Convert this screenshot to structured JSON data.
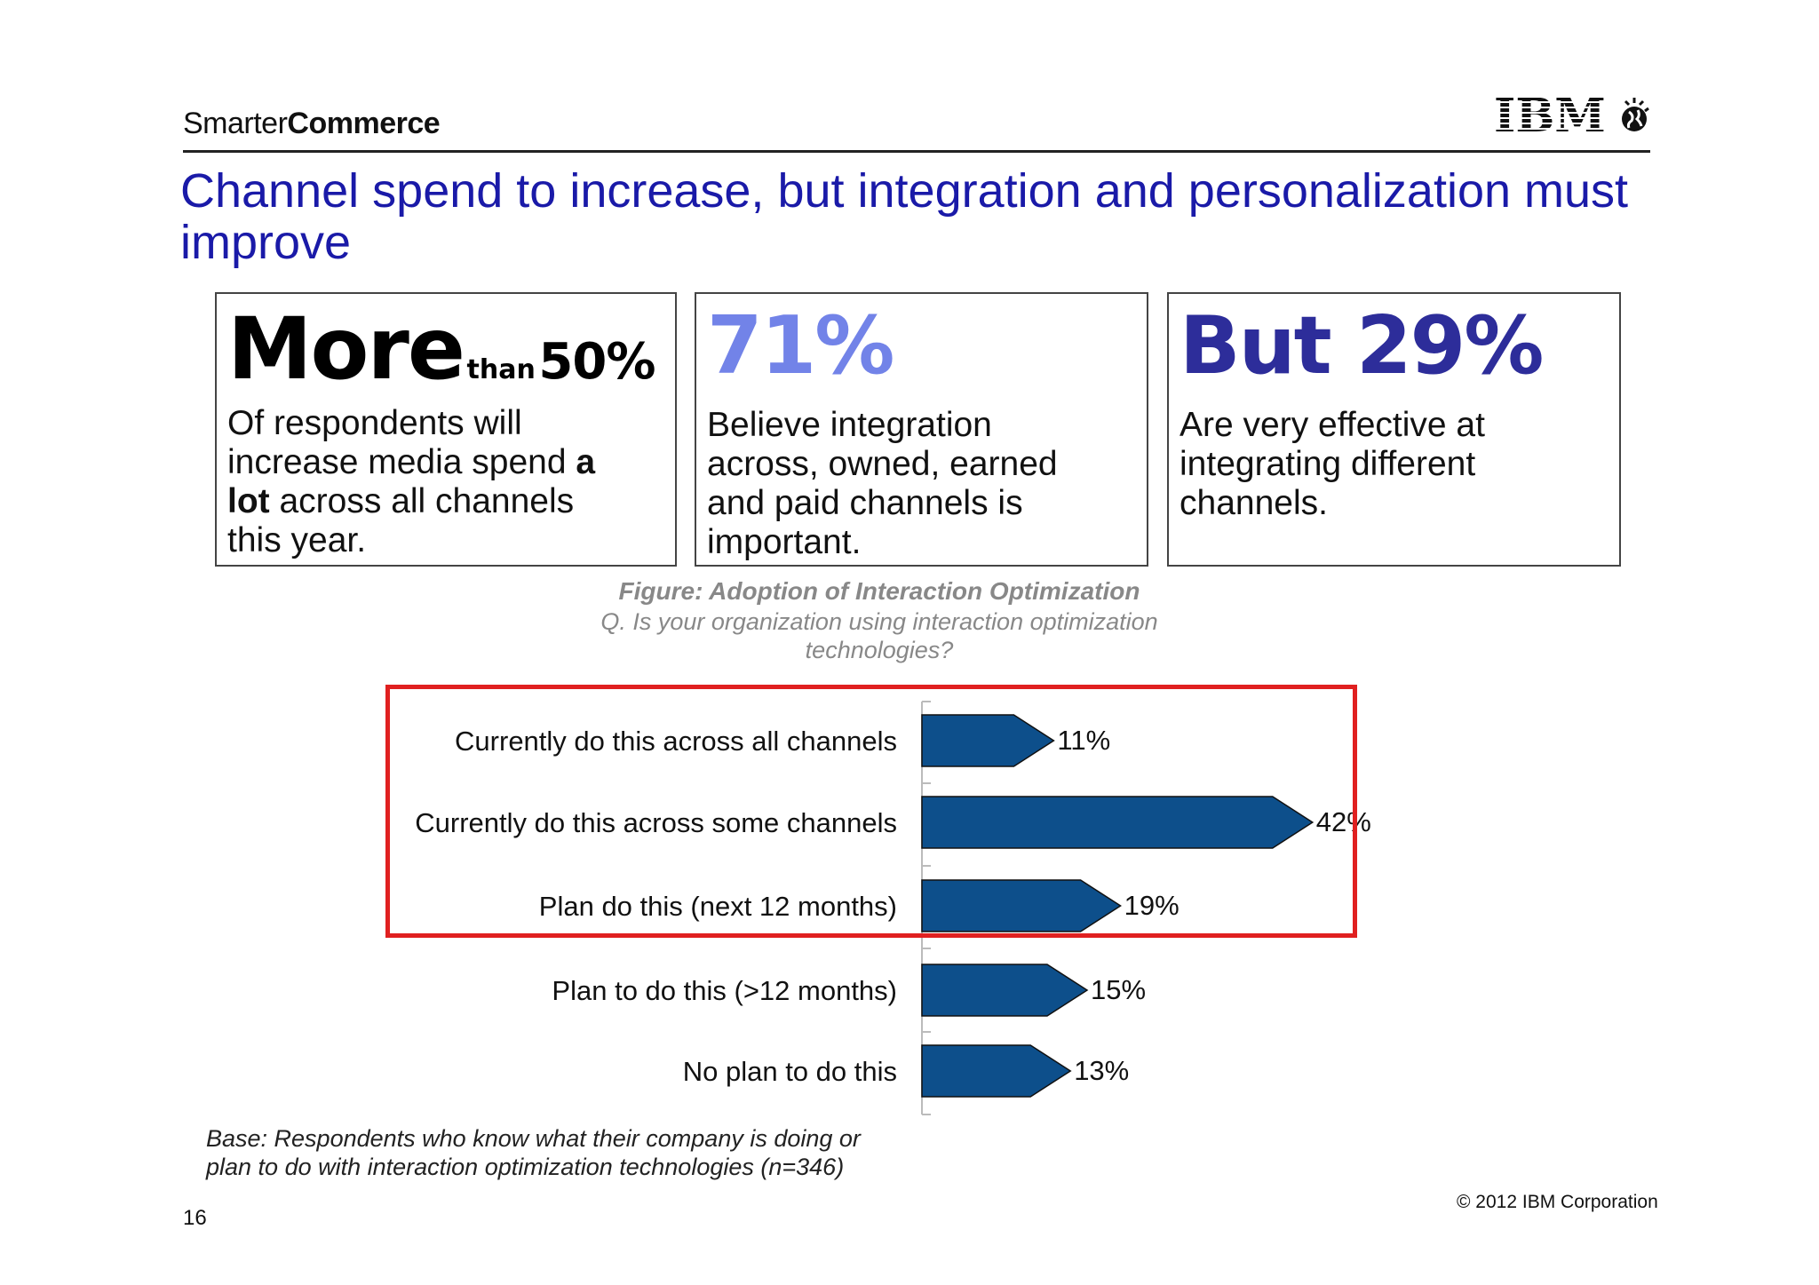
{
  "header": {
    "brand_light": "Smarter",
    "brand_bold": "Commerce",
    "logo_text": "IBM"
  },
  "slide_title": "Channel spend to increase, but integration and personalization must improve",
  "stats": [
    {
      "head_big": "More",
      "head_small": "than",
      "head_value": "50%",
      "body_lines": [
        "Of respondents will",
        "increase media spend ",
        "a",
        "lot",
        " across all channels",
        "this year."
      ]
    },
    {
      "head": "71%",
      "body_lines": [
        "Believe integration",
        "across, owned, earned",
        "and paid channels is",
        "important."
      ]
    },
    {
      "head": "But 29%",
      "body_lines": [
        "Are very effective at",
        "integrating different",
        "channels."
      ]
    }
  ],
  "footer": {
    "base_note_line1": "Base: Respondents who know what their company is doing or",
    "base_note_line2": "plan to do with interaction optimization technologies (n=346)",
    "page_number": "16",
    "copyright": "© 2012 IBM Corporation"
  },
  "colors": {
    "title": "#1a1aa8",
    "bar_fill": "#0d4f8b",
    "highlight": "#e02020",
    "stat2": "#7283e8",
    "stat3": "#2d2d9a"
  },
  "chart_data": {
    "type": "bar",
    "orientation": "horizontal",
    "title": "Figure: Adoption of Interaction Optimization",
    "subtitle_line1": "Q. Is your organization using interaction optimization",
    "subtitle_line2": "technologies?",
    "categories": [
      "Currently do this across all channels",
      "Currently do this across some channels",
      "Plan do this (next 12 months)",
      "Plan to do this (>12 months)",
      "No plan to do this"
    ],
    "values": [
      11,
      42,
      19,
      15,
      13
    ],
    "value_labels": [
      "11%",
      "42%",
      "19%",
      "15%",
      "13%"
    ],
    "unit": "%",
    "highlighted_categories": [
      0,
      1,
      2
    ],
    "grid": false
  }
}
